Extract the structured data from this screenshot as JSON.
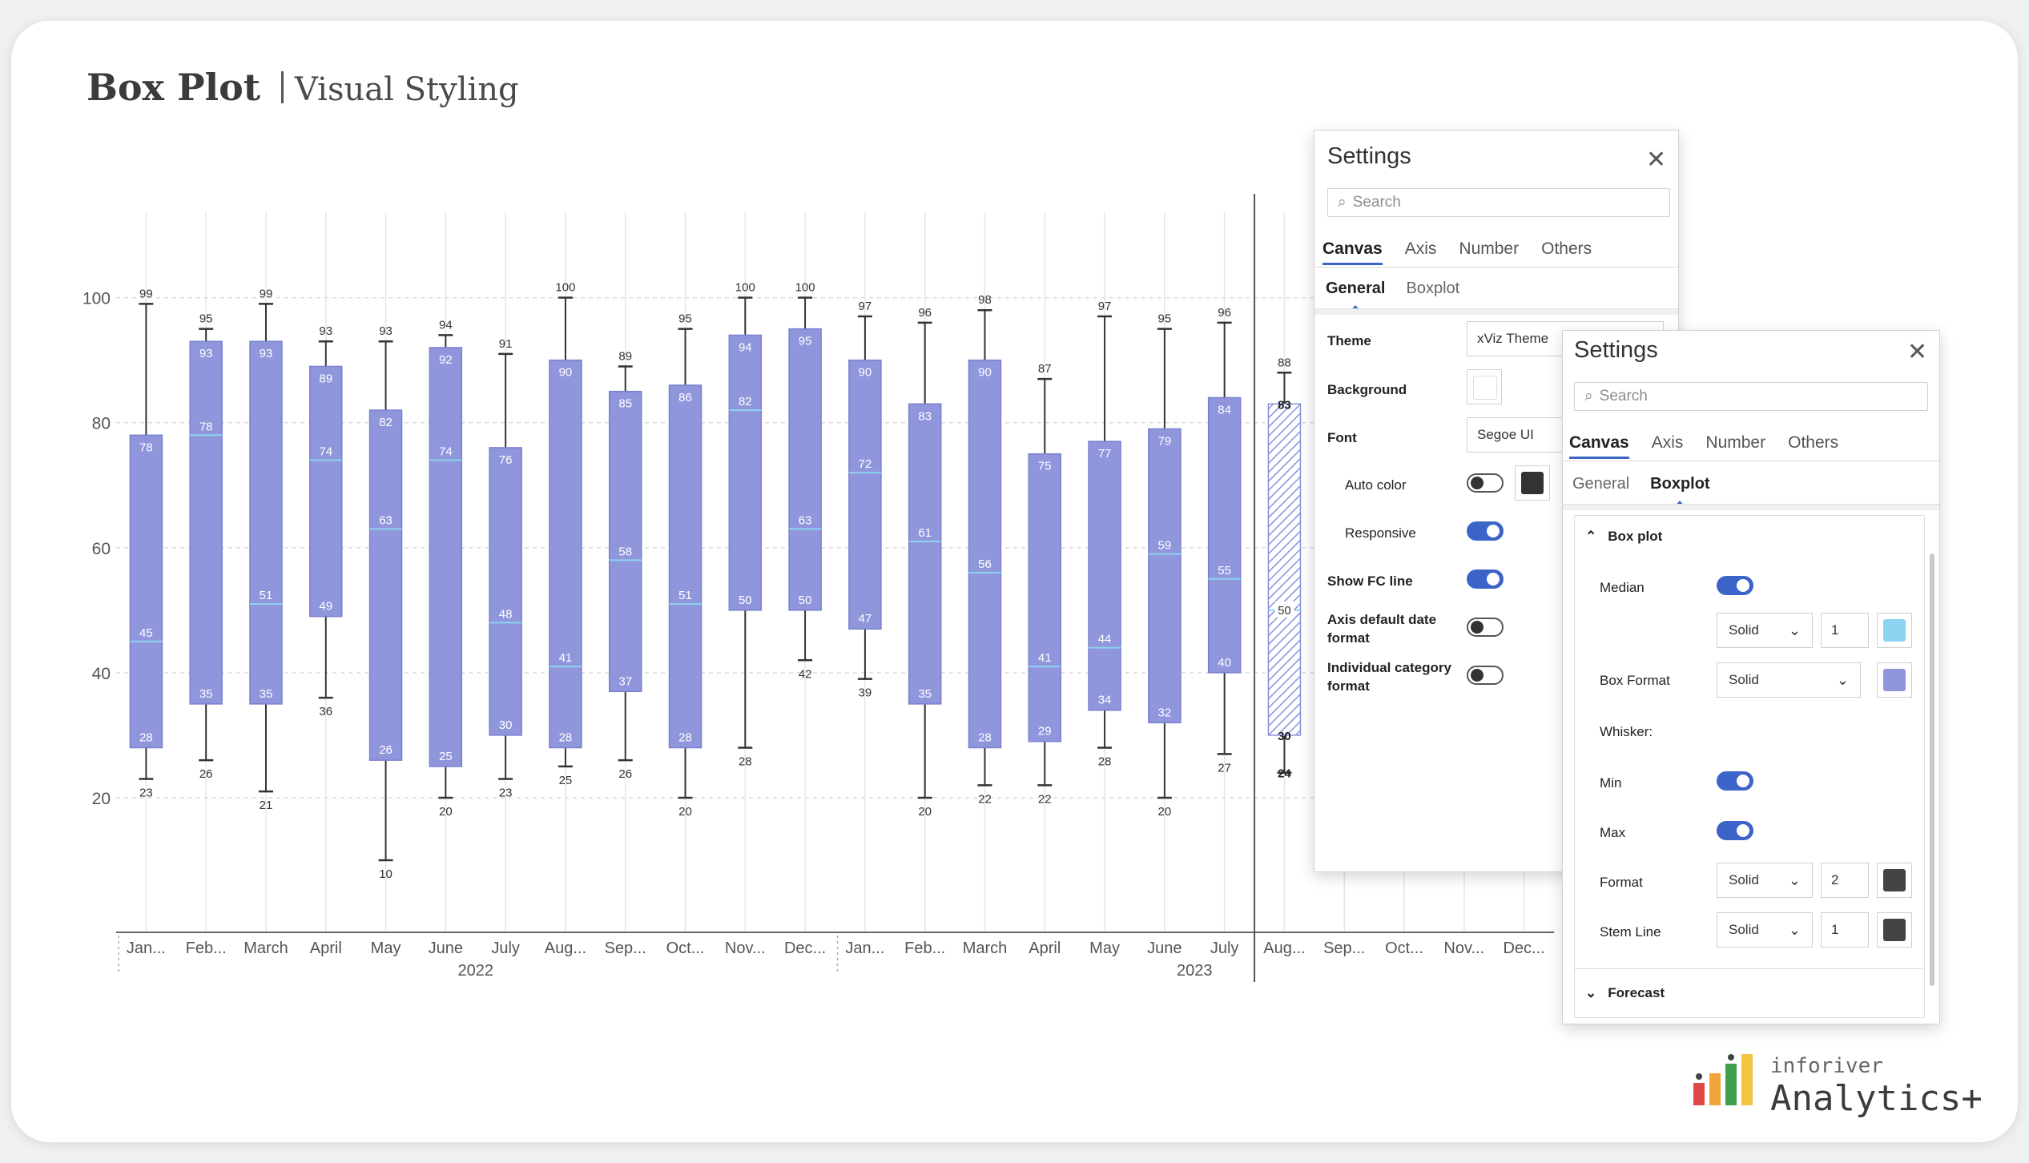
{
  "header": {
    "title": "Box Plot",
    "subtitle": "Visual Styling"
  },
  "colors": {
    "box": "#9096dc",
    "box_stroke": "#7a80cf",
    "median": "#8bd3f0",
    "forecast_hatch": "#8a90da",
    "whisker": "#333333",
    "toggle_on": "#3c64c8"
  },
  "chart_data": {
    "type": "box",
    "ylim": [
      10,
      102
    ],
    "yticks": [
      20,
      40,
      60,
      80,
      100
    ],
    "grid": true,
    "categories": [
      "Jan...",
      "Feb...",
      "March",
      "April",
      "May",
      "June",
      "July",
      "Aug...",
      "Sep...",
      "Oct...",
      "Nov...",
      "Dec...",
      "Jan...",
      "Feb...",
      "March",
      "April",
      "May",
      "June",
      "July",
      "Aug...",
      "Sep...",
      "Oct...",
      "Nov...",
      "Dec..."
    ],
    "year_groups": [
      {
        "label": "2022",
        "from": 0,
        "to": 11
      },
      {
        "label": "2023",
        "from": 12,
        "to": 23
      }
    ],
    "boxes": [
      {
        "min": 23,
        "q1": 28,
        "median": 45,
        "q3": 78,
        "max": 99
      },
      {
        "min": 26,
        "q1": 35,
        "median": 78,
        "q3": 93,
        "max": 95
      },
      {
        "min": 21,
        "q1": 35,
        "median": 51,
        "q3": 93,
        "max": 99
      },
      {
        "min": 36,
        "q1": 49,
        "median": 74,
        "q3": 89,
        "max": 93
      },
      {
        "min": 10,
        "q1": 26,
        "median": 63,
        "q3": 82,
        "max": 93
      },
      {
        "min": 20,
        "q1": 25,
        "median": 74,
        "q3": 92,
        "max": 94
      },
      {
        "min": 23,
        "q1": 30,
        "median": 48,
        "q3": 76,
        "max": 91
      },
      {
        "min": 25,
        "q1": 28,
        "median": 41,
        "q3": 90,
        "max": 100
      },
      {
        "min": 26,
        "q1": 37,
        "median": 58,
        "q3": 85,
        "max": 89
      },
      {
        "min": 20,
        "q1": 28,
        "median": 51,
        "q3": 86,
        "max": 95
      },
      {
        "min": 28,
        "q1": 50,
        "median": 82,
        "q3": 94,
        "max": 100
      },
      {
        "min": 42,
        "q1": 50,
        "median": 63,
        "q3": 95,
        "max": 100
      },
      {
        "min": 39,
        "q1": 47,
        "median": 72,
        "q3": 90,
        "max": 97
      },
      {
        "min": 20,
        "q1": 35,
        "median": 61,
        "q3": 83,
        "max": 96
      },
      {
        "min": 22,
        "q1": 28,
        "median": 56,
        "q3": 90,
        "max": 98
      },
      {
        "min": 22,
        "q1": 29,
        "median": 41,
        "q3": 75,
        "max": 87
      },
      {
        "min": 28,
        "q1": 34,
        "median": 44,
        "q3": 77,
        "max": 97
      },
      {
        "min": 20,
        "q1": 32,
        "median": 59,
        "q3": 79,
        "max": 95
      },
      {
        "min": 27,
        "q1": 40,
        "median": 55,
        "q3": 84,
        "max": 96
      },
      {
        "min": 24,
        "q1": 30,
        "median": 50,
        "q3": 83,
        "max": 88,
        "forecast": true
      }
    ],
    "extra_labels": [
      {
        "index": 19,
        "value": 83
      },
      {
        "index": 19,
        "value": 30
      },
      {
        "index": 19,
        "value": 24
      }
    ],
    "forecast_start_index": 19
  },
  "settings_panel_1": {
    "title": "Settings",
    "search_placeholder": "Search",
    "tabs": [
      "Canvas",
      "Axis",
      "Number",
      "Others"
    ],
    "subtabs": [
      "General",
      "Boxplot"
    ],
    "theme_label": "Theme",
    "theme_value": "xViz Theme",
    "background_label": "Background",
    "font_label": "Font",
    "font_value": "Segoe UI",
    "auto_color_label": "Auto color",
    "responsive_label": "Responsive",
    "show_fc_label": "Show FC line",
    "axis_date_label": "Axis default date format",
    "individual_cat_label": "Individual category format",
    "toggles": {
      "auto_color": false,
      "responsive": true,
      "show_fc_line": true,
      "axis_default_date_format": false,
      "individual_category_format": false
    }
  },
  "settings_panel_2": {
    "title": "Settings",
    "search_placeholder": "Search",
    "tabs": [
      "Canvas",
      "Axis",
      "Number",
      "Others"
    ],
    "subtabs": [
      "General",
      "Boxplot"
    ],
    "section_box_plot": "Box plot",
    "median_label": "Median",
    "median_style": "Solid",
    "median_width": "1",
    "median_color": "#8bd3f0",
    "box_format_label": "Box Format",
    "box_format_style": "Solid",
    "box_color": "#9096dc",
    "whisker_label": "Whisker:",
    "min_label": "Min",
    "max_label": "Max",
    "format_label": "Format",
    "format_style": "Solid",
    "format_width": "2",
    "format_color": "#444444",
    "stem_label": "Stem Line",
    "stem_style": "Solid",
    "stem_width": "1",
    "stem_color": "#444444",
    "section_forecast": "Forecast",
    "toggles": {
      "median": true,
      "min": true,
      "max": true
    }
  },
  "logo": {
    "small": "inforiver",
    "big": "Analytics+"
  }
}
